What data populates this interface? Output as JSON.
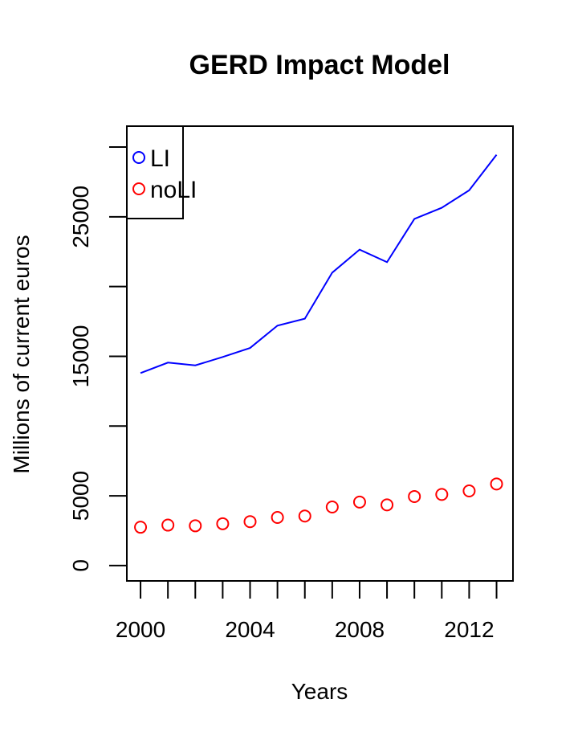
{
  "chart_data": {
    "type": "line",
    "title": "GERD Impact Model",
    "xlabel": "Years",
    "ylabel": "Millions of current euros",
    "xlim": [
      1999.5,
      2013.6
    ],
    "ylim": [
      -1100,
      31500
    ],
    "x_ticks": [
      2000,
      2001,
      2002,
      2003,
      2004,
      2005,
      2006,
      2007,
      2008,
      2009,
      2010,
      2011,
      2012,
      2013
    ],
    "x_tick_labels": [
      {
        "value": 2000,
        "label": "2000"
      },
      {
        "value": 2004,
        "label": "2004"
      },
      {
        "value": 2008,
        "label": "2008"
      },
      {
        "value": 2012,
        "label": "2012"
      }
    ],
    "y_ticks": [
      0,
      5000,
      10000,
      15000,
      20000,
      25000,
      30000
    ],
    "y_tick_labels": [
      {
        "value": 0,
        "label": "0"
      },
      {
        "value": 5000,
        "label": "5000"
      },
      {
        "value": 15000,
        "label": "15000"
      },
      {
        "value": 25000,
        "label": "25000"
      }
    ],
    "x": [
      2000,
      2001,
      2002,
      2003,
      2004,
      2005,
      2006,
      2007,
      2008,
      2009,
      2010,
      2011,
      2012,
      2013
    ],
    "series": [
      {
        "name": "LI",
        "style": "line",
        "color": "#0000ff",
        "values": [
          13800,
          14550,
          14350,
          14950,
          15600,
          17200,
          17700,
          21000,
          22650,
          21750,
          24850,
          25650,
          26900,
          29450
        ]
      },
      {
        "name": "noLI",
        "style": "points",
        "color": "#ff0000",
        "values": [
          2750,
          2900,
          2850,
          3000,
          3150,
          3450,
          3550,
          4200,
          4550,
          4350,
          4950,
          5100,
          5350,
          5850
        ]
      }
    ],
    "legend": {
      "placement": "top-left",
      "entries": [
        {
          "label": "LI",
          "color": "#0000ff"
        },
        {
          "label": "noLI",
          "color": "#ff0000"
        }
      ]
    },
    "grid": false
  }
}
